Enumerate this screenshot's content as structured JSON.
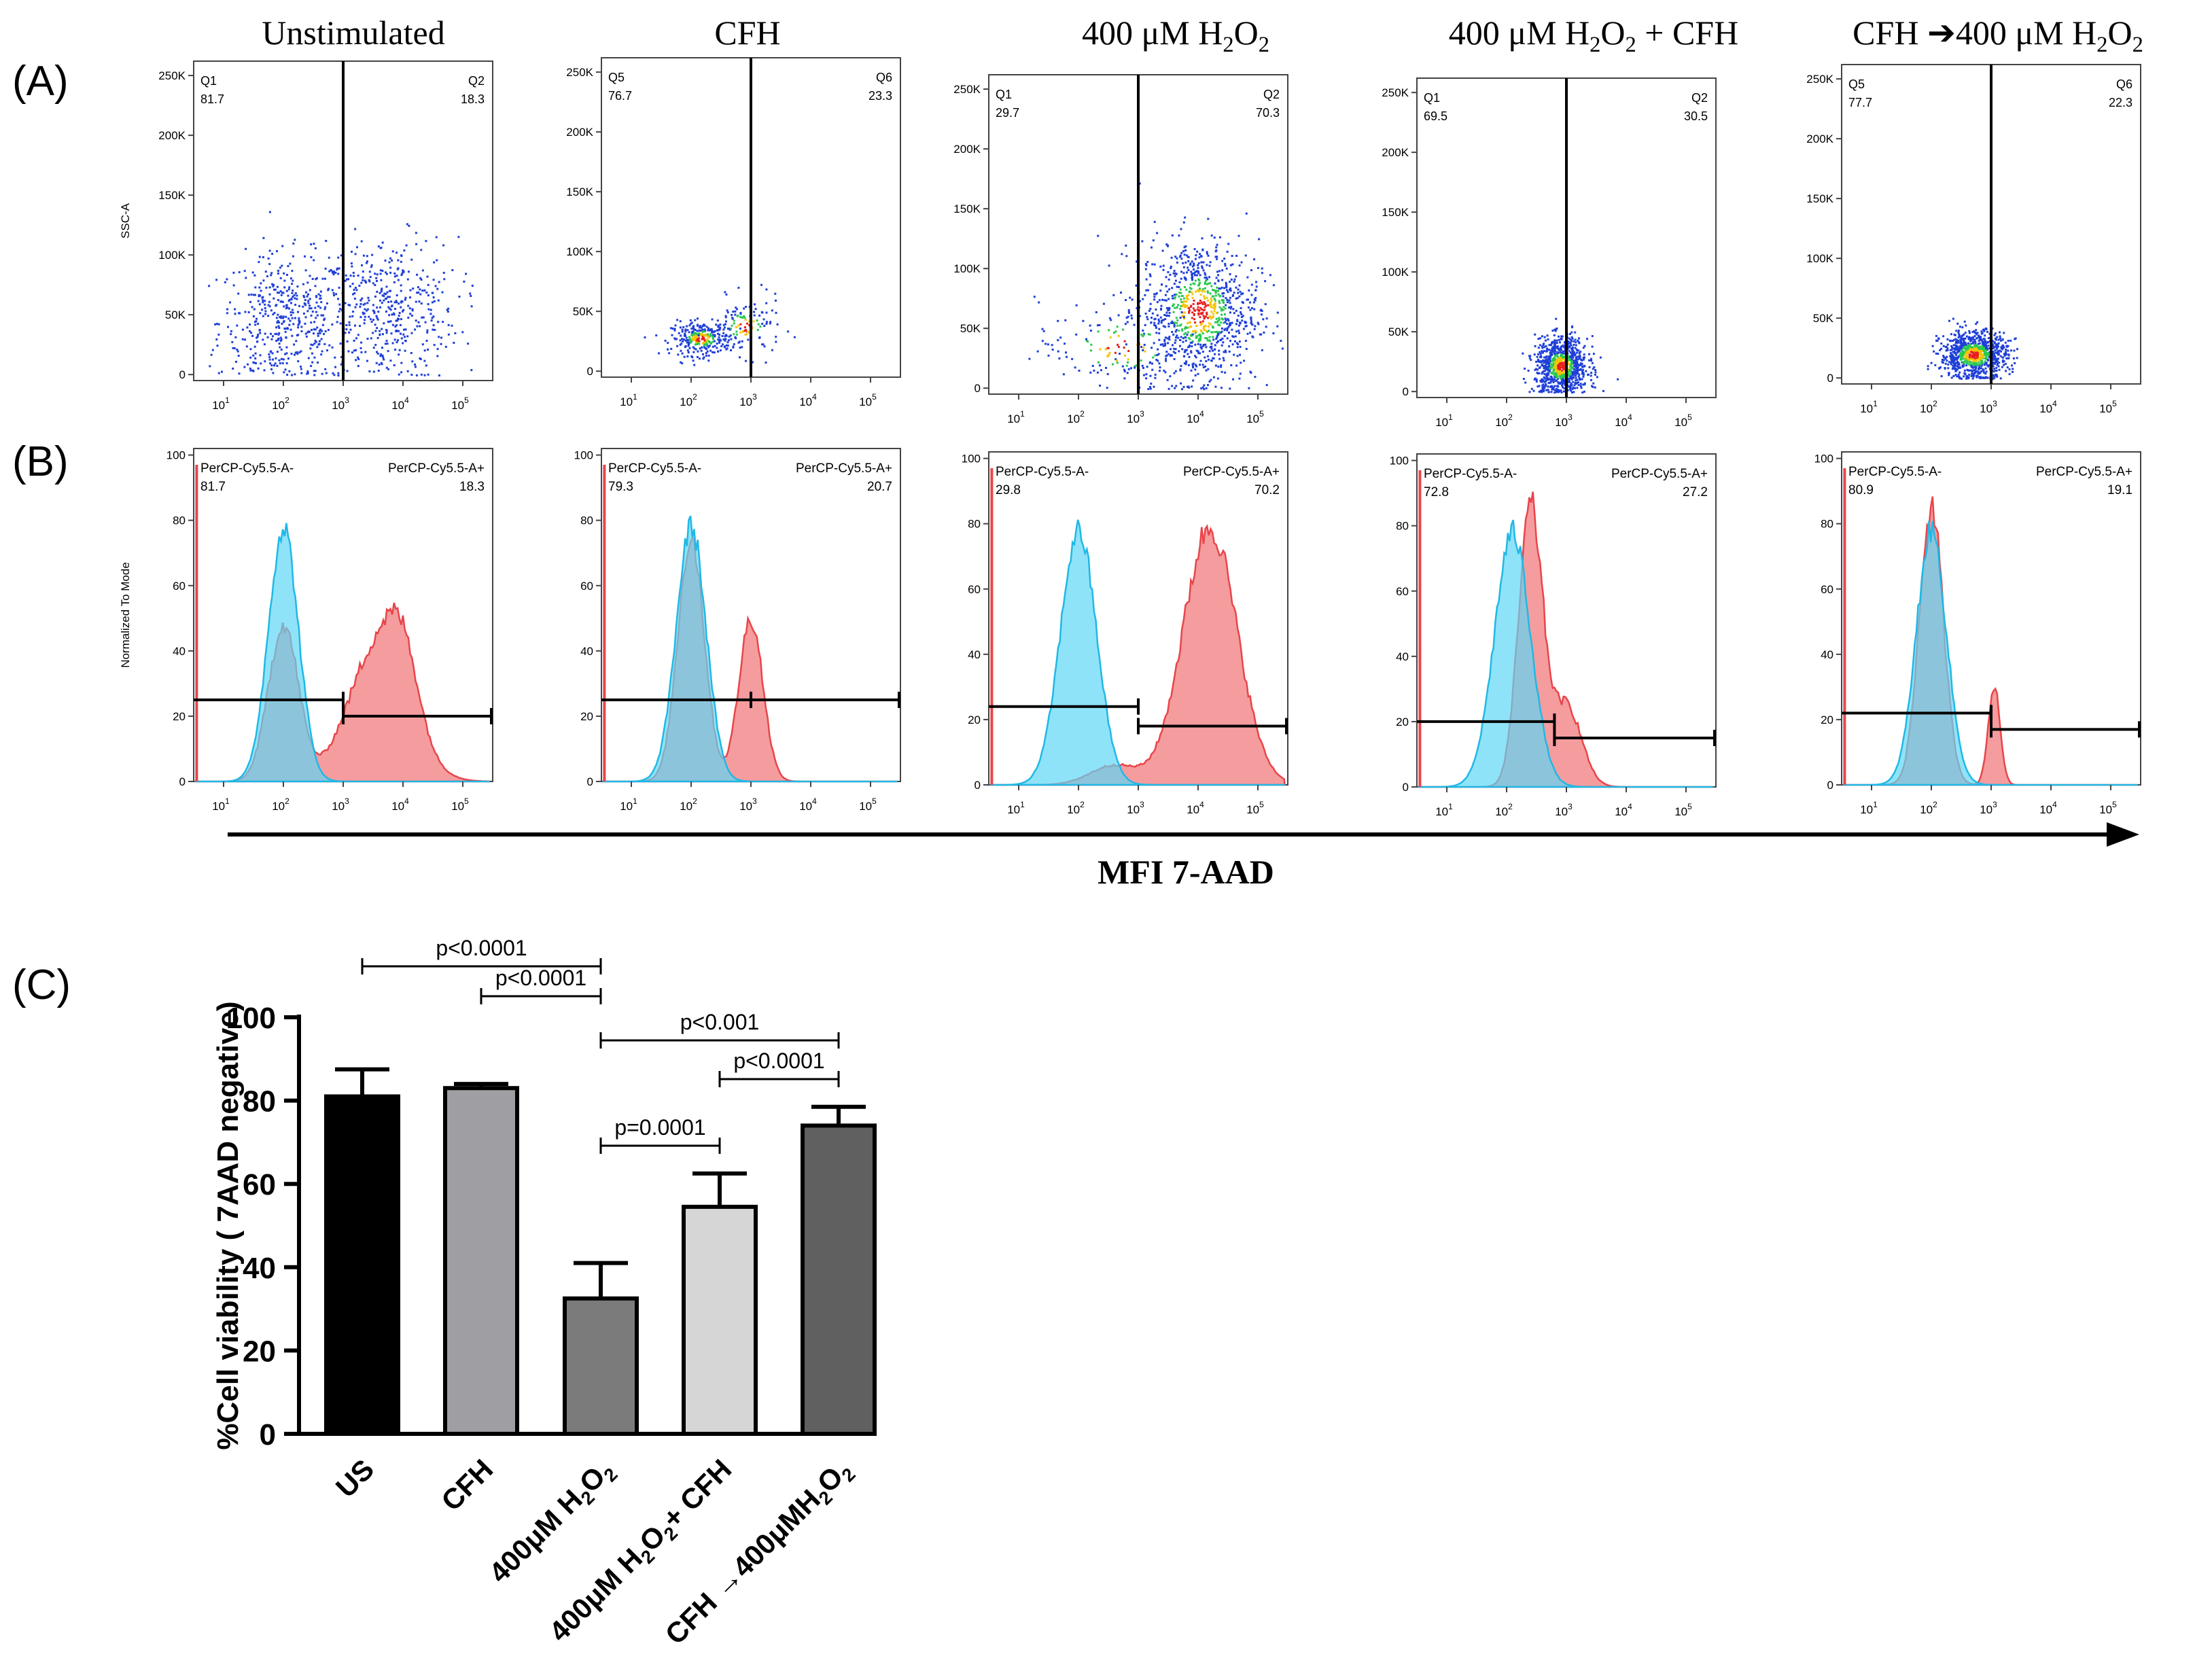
{
  "panel_labels": {
    "a": "(A)",
    "b": "(B)",
    "c": "(C)"
  },
  "conditions": [
    {
      "title": "Unstimulated",
      "scatter": {
        "ql": "Q1",
        "vl": "81.7",
        "qr": "Q2",
        "vr": "18.3"
      },
      "hist": {
        "neg": "81.7",
        "pos": "18.3"
      }
    },
    {
      "title": "CFH",
      "scatter": {
        "ql": "Q5",
        "vl": "76.7",
        "qr": "Q6",
        "vr": "23.3"
      },
      "hist": {
        "neg": "79.3",
        "pos": "20.7"
      }
    },
    {
      "title": "400 μM H₂O₂",
      "scatter": {
        "ql": "Q1",
        "vl": "29.7",
        "qr": "Q2",
        "vr": "70.3"
      },
      "hist": {
        "neg": "29.8",
        "pos": "70.2"
      }
    },
    {
      "title": "400 μM H₂O₂ + CFH",
      "scatter": {
        "ql": "Q1",
        "vl": "69.5",
        "qr": "Q2",
        "vr": "30.5"
      },
      "hist": {
        "neg": "72.8",
        "pos": "27.2"
      }
    },
    {
      "title": "CFH ➔400 μM H₂O₂",
      "scatter": {
        "ql": "Q5",
        "vl": "77.7",
        "qr": "Q6",
        "vr": "22.3"
      },
      "hist": {
        "neg": "80.9",
        "pos": "19.1"
      }
    }
  ],
  "scatter_axes": {
    "ylabel": "SSC-A",
    "yticks": [
      "0",
      "50K",
      "100K",
      "150K",
      "200K",
      "250K"
    ],
    "xticks_exp": [
      "1",
      "2",
      "3",
      "4",
      "5"
    ]
  },
  "hist_axes": {
    "ylabel": "Normalized To Mode",
    "yticks": [
      "0",
      "20",
      "40",
      "60",
      "80",
      "100"
    ],
    "gate_neg_label": "PerCP-Cy5.5-A-",
    "gate_pos_label": "PerCP-Cy5.5-A+",
    "series_colors": {
      "control": "#5fd7f5",
      "stained": "#f27b7d"
    }
  },
  "arrow_label": "MFI 7-AAD",
  "chart_data": {
    "type": "bar",
    "categories": [
      "US",
      "CFH",
      "400μM H₂O₂",
      "400μM H₂O₂+ CFH",
      "CFH →400μMH₂O₂"
    ],
    "values": [
      81,
      83,
      32.5,
      54.5,
      74
    ],
    "errors": [
      6.5,
      1,
      8.5,
      8,
      4.5
    ],
    "colors": [
      "#000000",
      "#9e9ea3",
      "#7b7b7b",
      "#d6d6d6",
      "#606060"
    ],
    "ylabel": "%Cell viability ( 7AAD negative)",
    "ylim": [
      0,
      100
    ],
    "yticks": [
      "0",
      "20",
      "40",
      "60",
      "80",
      "100"
    ],
    "significance": [
      {
        "from": 0,
        "to": 2,
        "label": "p<0.0001"
      },
      {
        "from": 1,
        "to": 2,
        "label": "p<0.0001"
      },
      {
        "from": 2,
        "to": 4,
        "label": "p<0.001"
      },
      {
        "from": 3,
        "to": 4,
        "label": "p<0.0001"
      },
      {
        "from": 2,
        "to": 3,
        "label": "p=0.0001"
      }
    ]
  }
}
